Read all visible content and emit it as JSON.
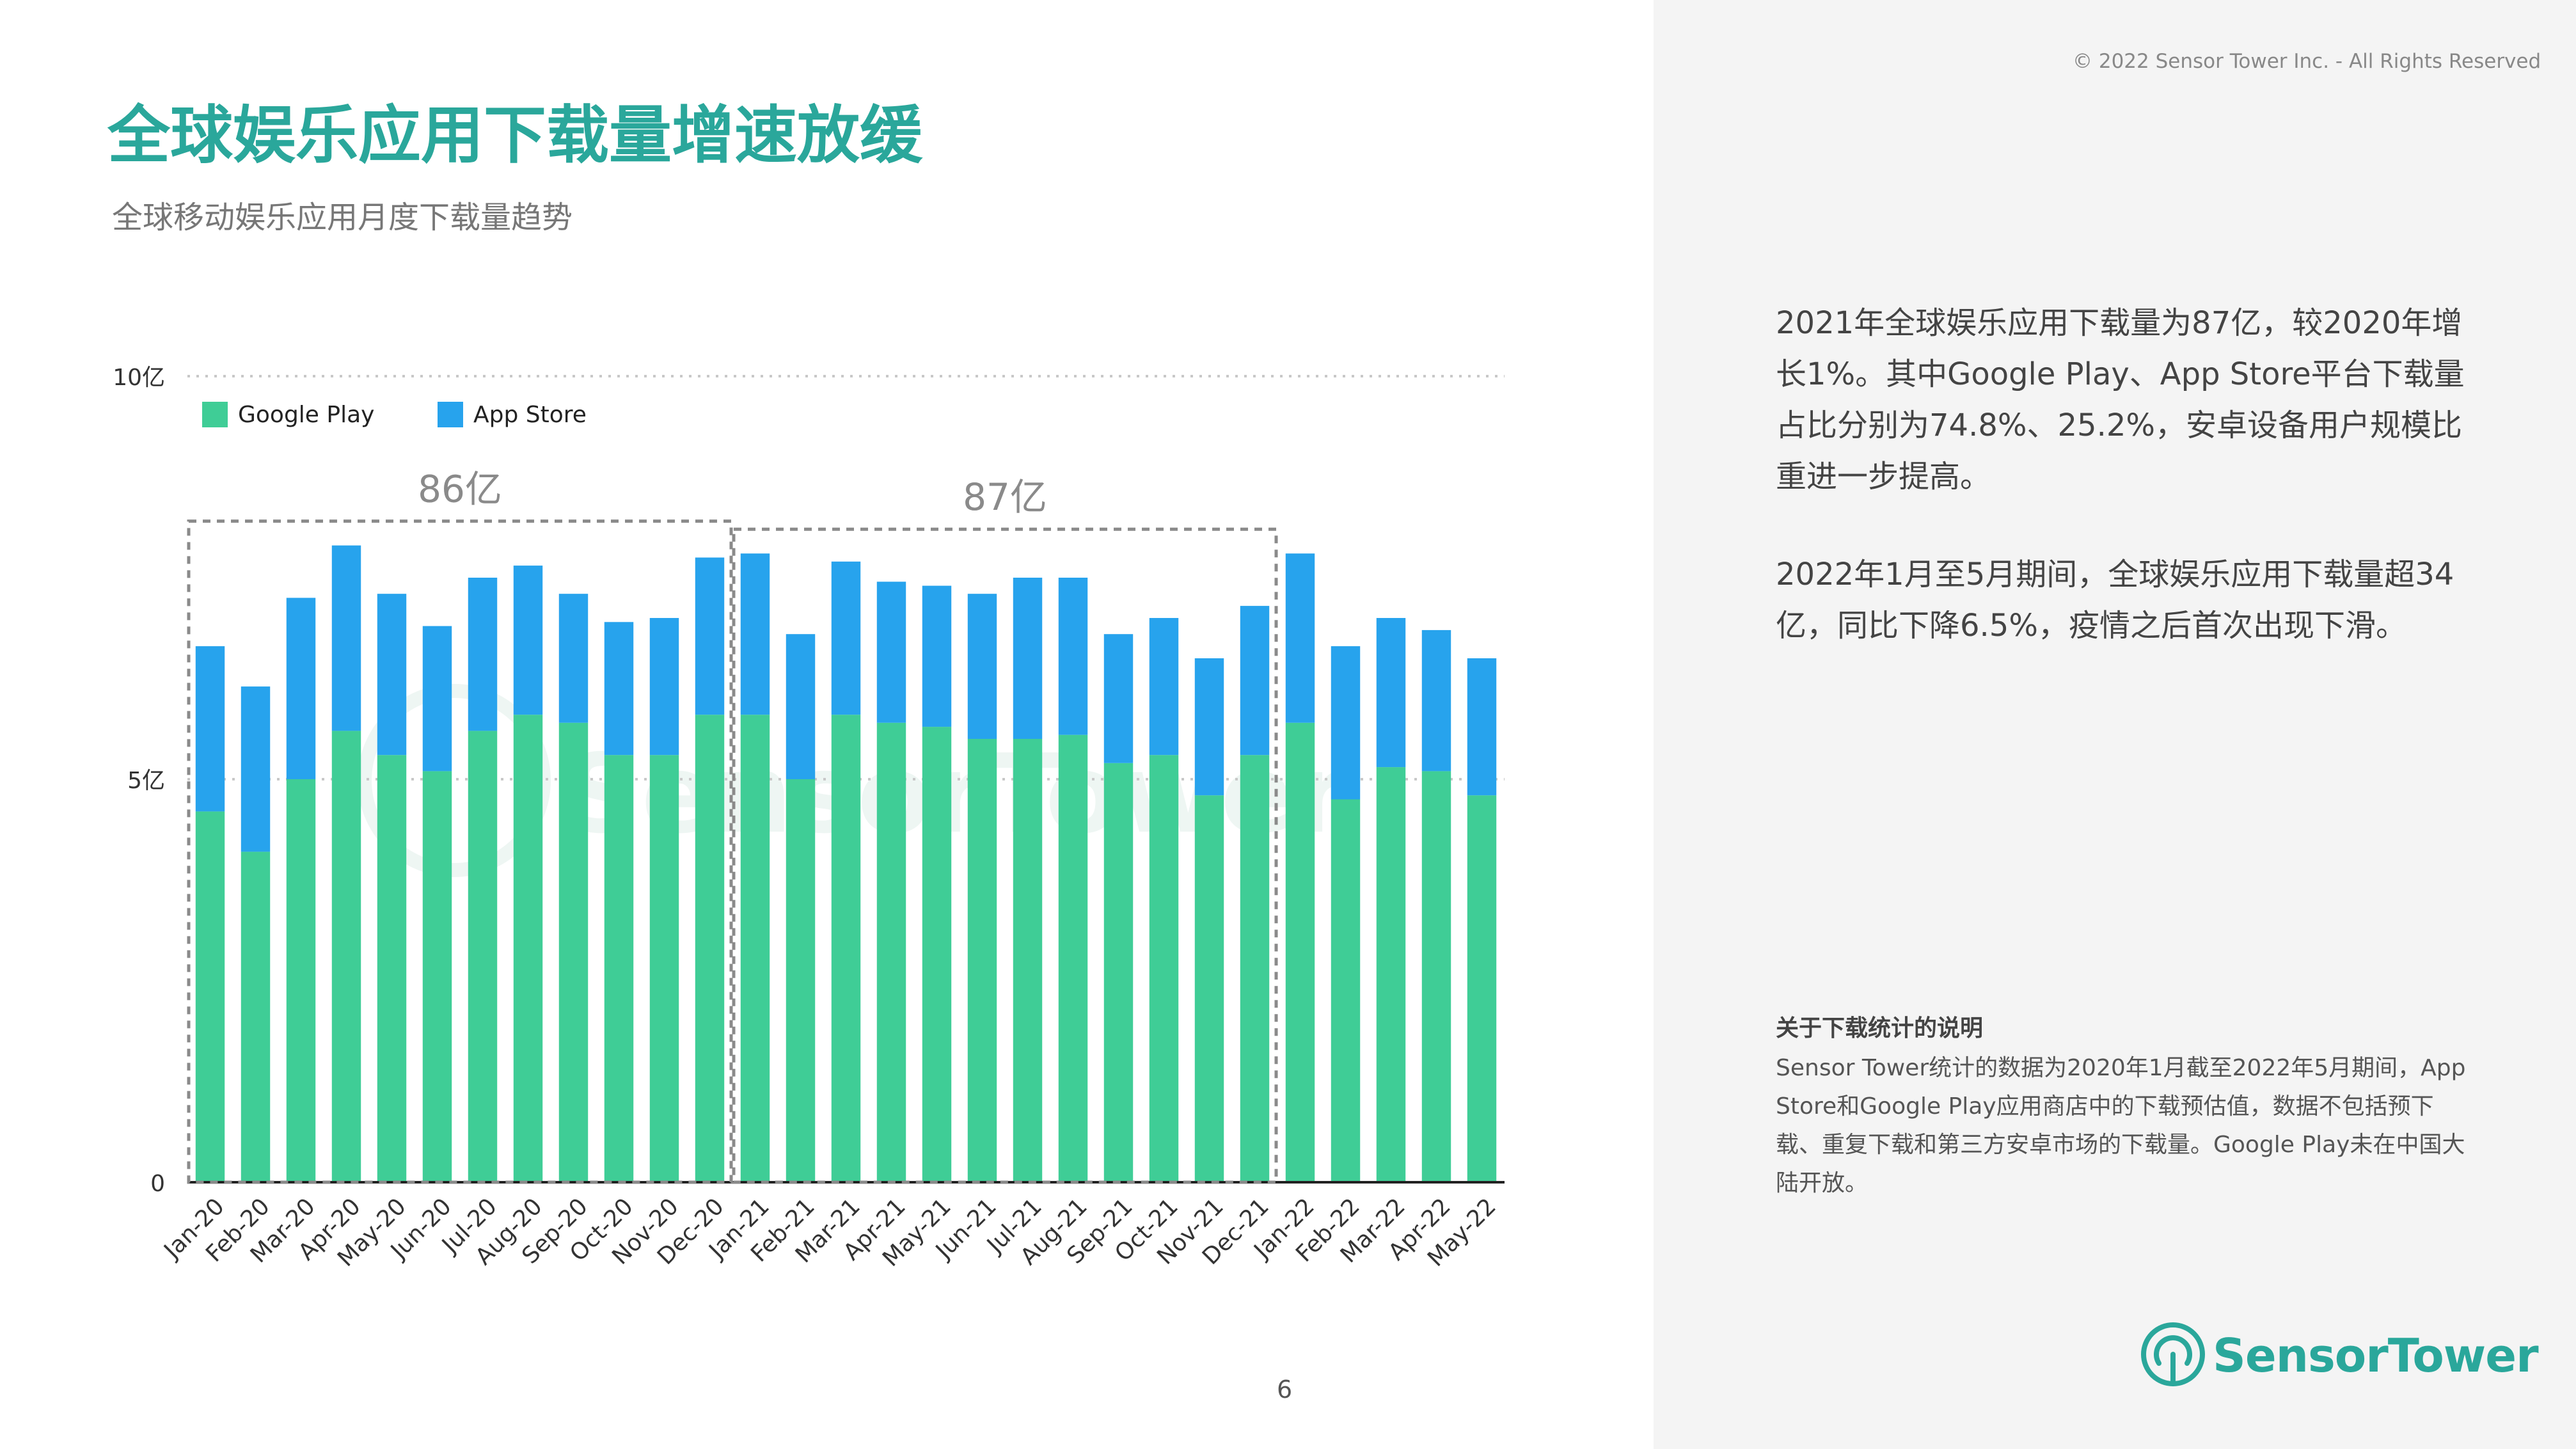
{
  "title": "全球娱乐应用下载量增速放缓",
  "subtitle": "全球移动娱乐应用月度下载量趋势",
  "copyright": "© 2022 Sensor Tower Inc. - All Rights Reserved",
  "page_number": "6",
  "insights": {
    "p1": "2021年全球娱乐应用下载量为87亿，较2020年增长1%。其中Google Play、App Store平台下载量占比分别为74.8%、25.2%，安卓设备用户规模比重进一步提高。",
    "p2": "2022年1月至5月期间，全球娱乐应用下载量超34亿，同比下降6.5%，疫情之后首次出现下滑。"
  },
  "note": {
    "title": "关于下载统计的说明",
    "body": "Sensor Tower统计的数据为2020年1月截至2022年5月期间，App Store和Google Play应用商店中的下载预估值，数据不包括预下载、重复下载和第三方安卓市场的下载量。Google Play未在中国大陆开放。"
  },
  "logo": {
    "text": "SensorTower",
    "icon": "sensor-tower-logo-icon"
  },
  "colors": {
    "google_play": "#3fcd96",
    "app_store": "#27a3ed",
    "accent": "#2aa79b"
  },
  "chart_data": {
    "type": "bar",
    "stacked": true,
    "categories": [
      "Jan-20",
      "Feb-20",
      "Mar-20",
      "Apr-20",
      "May-20",
      "Jun-20",
      "Jul-20",
      "Aug-20",
      "Sep-20",
      "Oct-20",
      "Nov-20",
      "Dec-20",
      "Jan-21",
      "Feb-21",
      "Mar-21",
      "Apr-21",
      "May-21",
      "Jun-21",
      "Jul-21",
      "Aug-21",
      "Sep-21",
      "Oct-21",
      "Nov-21",
      "Dec-21",
      "Jan-22",
      "Feb-22",
      "Mar-22",
      "Apr-22",
      "May-22"
    ],
    "series": [
      {
        "name": "Google Play",
        "color": "#3fcd96",
        "values": [
          4.6,
          4.1,
          5.0,
          5.6,
          5.3,
          5.1,
          5.6,
          5.8,
          5.7,
          5.3,
          5.3,
          5.8,
          5.8,
          5.0,
          5.8,
          5.7,
          5.65,
          5.5,
          5.5,
          5.55,
          5.2,
          5.3,
          4.8,
          5.3,
          5.7,
          4.75,
          5.15,
          5.1,
          4.8
        ]
      },
      {
        "name": "App Store",
        "color": "#27a3ed",
        "values": [
          2.05,
          2.05,
          2.25,
          2.3,
          2.0,
          1.8,
          1.9,
          1.85,
          1.6,
          1.65,
          1.7,
          1.95,
          2.0,
          1.8,
          1.9,
          1.75,
          1.75,
          1.8,
          2.0,
          1.95,
          1.6,
          1.7,
          1.7,
          1.85,
          2.1,
          1.9,
          1.85,
          1.75,
          1.7
        ]
      }
    ],
    "y_ticks": [
      {
        "value": 0,
        "label": "0"
      },
      {
        "value": 5,
        "label": "5亿"
      },
      {
        "value": 10,
        "label": "10亿"
      }
    ],
    "ylim": [
      0,
      10
    ],
    "grid": "dotted at 5亿 and 10亿",
    "legend": "top-left",
    "annotations": [
      {
        "label": "86亿",
        "range": [
          "Jan-20",
          "Dec-20"
        ]
      },
      {
        "label": "87亿",
        "range": [
          "Jan-21",
          "Dec-21"
        ]
      }
    ],
    "watermark": "SensorTower"
  }
}
